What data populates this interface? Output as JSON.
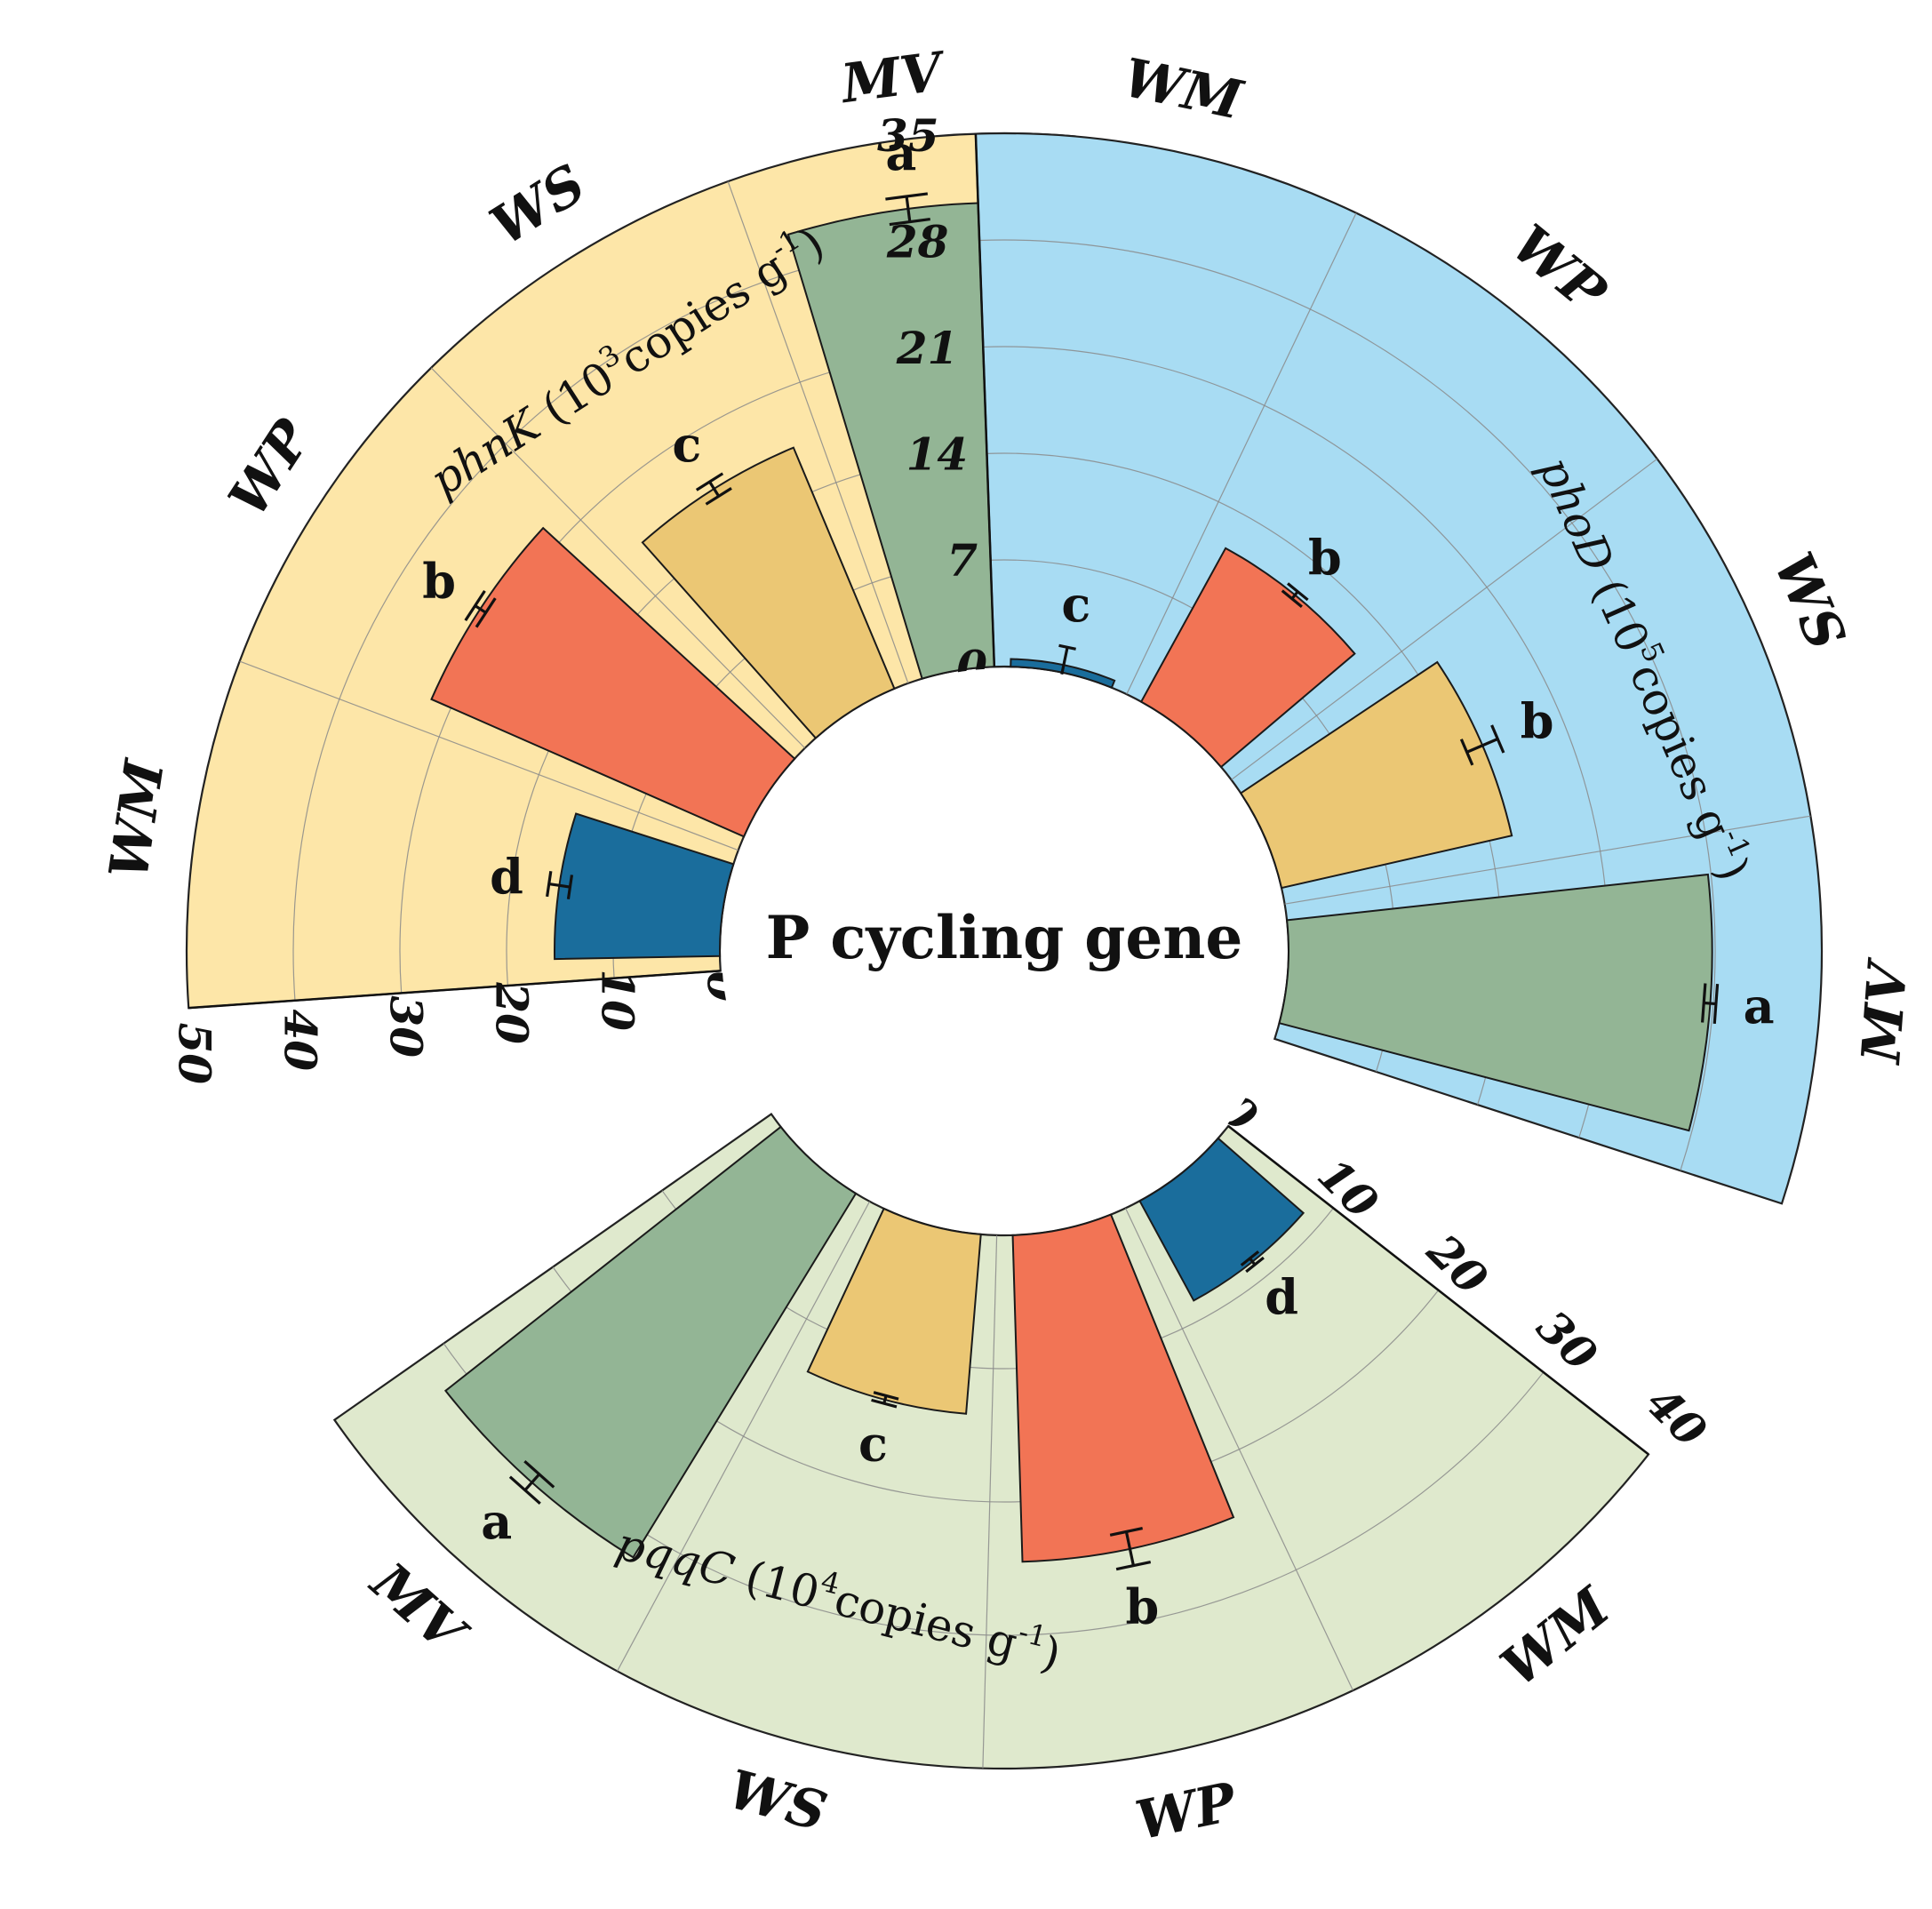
{
  "center_title": "P cycling gene",
  "chart_data": [
    {
      "type": "bar",
      "polar": true,
      "gene": "phnK",
      "unit_label": "(10",
      "unit_exponent": "3",
      "unit_suffix": "copies g",
      "unit_suffix_exp": "-1",
      "unit_close": ")",
      "fill": "#fde6a8",
      "ticks": [
        "0",
        "10",
        "20",
        "30",
        "40",
        "50"
      ],
      "ylim": [
        0,
        50
      ],
      "categories": [
        "WM",
        "WP",
        "WS",
        "MV"
      ],
      "values": [
        15.5,
        32,
        24.5,
        43.5
      ],
      "errors": [
        1.0,
        0.6,
        0.8,
        1.2
      ],
      "significance": [
        "d",
        "b",
        "c",
        "a"
      ],
      "bar_colors": [
        "#1a6d9c",
        "#f27455",
        "#ebc774",
        "#93b595"
      ]
    },
    {
      "type": "bar",
      "polar": true,
      "gene": "phoD",
      "unit_label": "(10",
      "unit_exponent": "5",
      "unit_suffix": "copies g",
      "unit_suffix_exp": "-1",
      "unit_close": ")",
      "fill": "#a8dcf3",
      "ticks": [
        "0",
        "7",
        "14",
        "21",
        "28",
        "35"
      ],
      "ylim": [
        0,
        35
      ],
      "categories": [
        "WM",
        "WP",
        "WS",
        "MV"
      ],
      "values": [
        0.5,
        11.5,
        15.5,
        27.8
      ],
      "errors": [
        1.2,
        0.3,
        1.1,
        0.4
      ],
      "significance": [
        "c",
        "b",
        "b",
        "a"
      ],
      "bar_colors": [
        "#1a6d9c",
        "#f27455",
        "#ebc774",
        "#93b595"
      ]
    },
    {
      "type": "bar",
      "polar": true,
      "gene": "pqqC",
      "unit_label": "(10",
      "unit_exponent": "4",
      "unit_suffix": "copies g",
      "unit_suffix_exp": "-1",
      "unit_close": ")",
      "fill": "#dfe9cd",
      "ticks": [
        "0",
        "10",
        "20",
        "30",
        "40"
      ],
      "ylim": [
        0,
        40
      ],
      "categories": [
        "WM",
        "WP",
        "WS",
        "MV"
      ],
      "values": [
        8.5,
        24.5,
        13.5,
        32
      ],
      "errors": [
        0.3,
        1.3,
        0.3,
        0.8
      ],
      "significance": [
        "d",
        "b",
        "c",
        "a"
      ],
      "bar_colors": [
        "#1a6d9c",
        "#f27455",
        "#ebc774",
        "#93b595"
      ]
    }
  ]
}
